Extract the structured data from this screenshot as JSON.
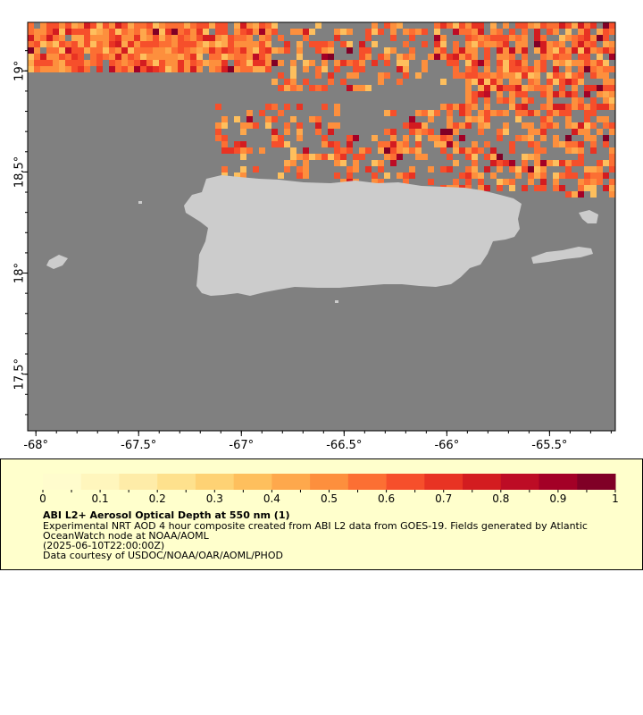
{
  "map": {
    "lon_ticks": [
      {
        "value": -68,
        "label": "-68°"
      },
      {
        "value": -67.5,
        "label": "-67.5°"
      },
      {
        "value": -67,
        "label": "-67°"
      },
      {
        "value": -66.5,
        "label": "-66.5°"
      },
      {
        "value": -66,
        "label": "-66°"
      },
      {
        "value": -65.5,
        "label": "-65.5°"
      }
    ],
    "lat_ticks": [
      {
        "value": 19,
        "label": "19°"
      },
      {
        "value": 18.5,
        "label": "18.5°"
      },
      {
        "value": 18,
        "label": "18°"
      },
      {
        "value": 17.5,
        "label": "17.5°"
      }
    ],
    "lon_range": [
      -68.04,
      -65.18
    ],
    "lat_range": [
      17.22,
      19.24
    ],
    "colors": {
      "ocean": "#808080",
      "land": "#cccccc",
      "frame": "#000000"
    }
  },
  "legend": {
    "tick_labels": [
      "0",
      "0.1",
      "0.2",
      "0.3",
      "0.4",
      "0.5",
      "0.6",
      "0.7",
      "0.8",
      "0.9",
      "1"
    ],
    "colors": [
      "#fffccd",
      "#fff6bd",
      "#feeca8",
      "#fee18d",
      "#fed274",
      "#febf5d",
      "#fea84c",
      "#fd8f3d",
      "#fc6f33",
      "#f64f2b",
      "#e83323",
      "#d31c20",
      "#bd0c25",
      "#a30026",
      "#800026"
    ],
    "title": "ABI L2+ Aerosol Optical Depth at 550 nm (1)",
    "line1": "Experimental NRT AOD 4 hour composite created from ABI L2 data from GOES-19. Fields generated by Atlantic",
    "line2": "OceanWatch node at NOAA/AOML",
    "line3": "(2025-06-10T22:00:00Z)",
    "line4": "Data courtesy of USDOC/NOAA/OAR/AOML/PHOD"
  }
}
